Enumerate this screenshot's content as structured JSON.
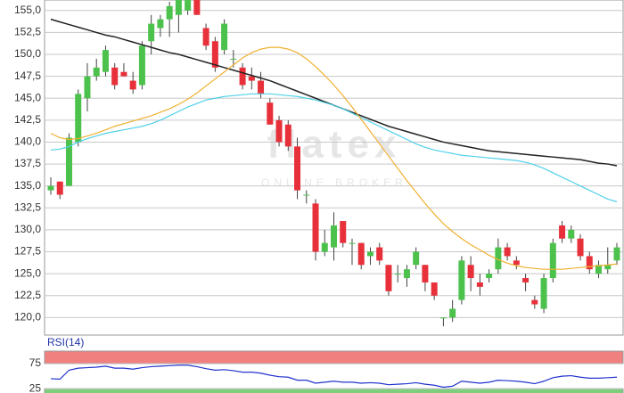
{
  "chart_data": [
    {
      "type": "candlestick",
      "annotations": [
        "flatex",
        "ONLINE BROKER"
      ],
      "up_color": "#4cc24c",
      "down_color": "#e8303a",
      "wick_color": "#444444",
      "open": [
        134.5,
        135.5,
        135,
        140,
        145,
        147.5,
        148,
        148.5,
        148,
        147,
        146.5,
        151.5,
        153,
        154,
        154.5,
        155,
        157,
        153,
        151.5,
        150.5,
        149.5,
        148.5,
        147.5,
        147,
        144.5,
        142.5,
        142,
        139.5,
        134,
        133,
        127.5,
        128,
        131,
        128.5,
        128.5,
        127,
        128,
        126,
        125,
        124.5,
        126,
        126,
        124,
        120,
        120,
        122,
        126,
        124,
        124.5,
        125.5,
        128,
        126.5,
        124.5,
        122,
        121,
        124.5,
        130.5,
        129,
        129,
        127,
        125,
        125.5,
        126.5
      ],
      "high": [
        136,
        135.5,
        141,
        146,
        149,
        149.5,
        151,
        149,
        149,
        148,
        151.5,
        154.5,
        154.5,
        156,
        157.5,
        157.5,
        157.5,
        153.5,
        152,
        154,
        150.5,
        149,
        148.5,
        148,
        145,
        143,
        142.5,
        140.5,
        134.5,
        133.5,
        130,
        132,
        131,
        129,
        128.5,
        128,
        128.5,
        126,
        126,
        126,
        128,
        126,
        124,
        120,
        122,
        127,
        127,
        125,
        125.5,
        129,
        128.5,
        127,
        125,
        122.5,
        125,
        129,
        131,
        130.5,
        129.5,
        127.5,
        126.5,
        128,
        128.5
      ],
      "low": [
        134,
        133.5,
        135,
        139.5,
        143.5,
        147,
        147.5,
        146,
        147.5,
        145.5,
        146,
        150,
        152,
        152,
        152.5,
        154.5,
        154.5,
        150.5,
        148,
        150,
        148.5,
        146,
        146,
        145,
        142,
        139.5,
        139,
        133.5,
        133,
        126.5,
        127,
        126.5,
        128,
        126,
        125.5,
        126,
        126,
        122.5,
        124,
        123.5,
        125.5,
        123,
        122,
        119,
        119.5,
        121.5,
        123,
        122.5,
        124,
        125,
        126.5,
        125.5,
        123,
        121,
        120.5,
        124,
        128.5,
        128.5,
        126.5,
        125,
        124.5,
        125,
        126
      ],
      "close": [
        135,
        134,
        140.5,
        145.5,
        147.5,
        148.5,
        150.5,
        146.5,
        147.5,
        146,
        151,
        153.5,
        154,
        155.5,
        157,
        157,
        154.5,
        151,
        148.5,
        153.5,
        149.5,
        146.5,
        147,
        145.5,
        142,
        140,
        139.5,
        134.5,
        134,
        127.5,
        128.5,
        130.5,
        128.5,
        128.5,
        126,
        127.5,
        126.5,
        123,
        125,
        125.5,
        127.5,
        124,
        122.5,
        120,
        121,
        126.5,
        124.5,
        123.5,
        125,
        128,
        127,
        126,
        124,
        121.5,
        124.5,
        128.5,
        129,
        130,
        127,
        125.5,
        126,
        126,
        128
      ],
      "series": [
        {
          "color": "#222222",
          "values": [
            154.0,
            153.7,
            153.4,
            153.1,
            152.8,
            152.5,
            152.2,
            152.0,
            151.7,
            151.4,
            151.1,
            150.8,
            150.5,
            150.2,
            150.0,
            149.7,
            149.4,
            149.1,
            148.8,
            148.5,
            148.2,
            147.9,
            147.6,
            147.3,
            147.0,
            146.6,
            146.2,
            145.8,
            145.4,
            145.0,
            144.6,
            144.2,
            143.8,
            143.4,
            143.0,
            142.6,
            142.2,
            141.8,
            141.5,
            141.2,
            140.9,
            140.6,
            140.3,
            140.0,
            139.8,
            139.6,
            139.4,
            139.2,
            139.0,
            138.9,
            138.8,
            138.7,
            138.6,
            138.5,
            138.4,
            138.3,
            138.2,
            138.1,
            138.0,
            137.8,
            137.6,
            137.5,
            137.3
          ]
        },
        {
          "color": "#4fd0e8",
          "values": [
            139.1,
            139.2,
            139.5,
            140.0,
            140.4,
            140.7,
            141.0,
            141.2,
            141.4,
            141.6,
            141.8,
            142.1,
            142.5,
            143.0,
            143.5,
            144.0,
            144.4,
            144.8,
            145.0,
            145.2,
            145.3,
            145.4,
            145.5,
            145.5,
            145.5,
            145.4,
            145.3,
            145.2,
            145.0,
            144.8,
            144.5,
            144.2,
            143.8,
            143.3,
            142.8,
            142.3,
            141.8,
            141.3,
            140.8,
            140.3,
            139.8,
            139.4,
            139.1,
            138.9,
            138.7,
            138.5,
            138.4,
            138.3,
            138.2,
            138.1,
            138.0,
            137.9,
            137.7,
            137.4,
            137.0,
            136.5,
            136.0,
            135.5,
            135.0,
            134.5,
            134.0,
            133.5,
            133.2
          ]
        },
        {
          "color": "#f0b030",
          "values": [
            141.0,
            140.5,
            140.3,
            140.4,
            140.7,
            141.0,
            141.4,
            141.8,
            142.1,
            142.4,
            142.7,
            143.0,
            143.4,
            143.8,
            144.3,
            144.9,
            145.6,
            146.4,
            147.2,
            148.0,
            148.8,
            149.6,
            150.2,
            150.6,
            150.8,
            150.8,
            150.6,
            150.2,
            149.5,
            148.6,
            147.6,
            146.5,
            145.3,
            144.0,
            142.6,
            141.2,
            139.8,
            138.4,
            137.0,
            135.6,
            134.3,
            133.0,
            131.8,
            130.7,
            129.8,
            129.0,
            128.3,
            127.7,
            127.1,
            126.6,
            126.2,
            125.9,
            125.7,
            125.6,
            125.5,
            125.5,
            125.5,
            125.6,
            125.7,
            125.8,
            125.9,
            126.0,
            126.1
          ]
        }
      ],
      "ylim": [
        118,
        156.2
      ],
      "yticks": [
        {
          "value": 120,
          "label": "120,0"
        },
        {
          "value": 122.5,
          "label": "122,5"
        },
        {
          "value": 125,
          "label": "125,0"
        },
        {
          "value": 127.5,
          "label": "127,5"
        },
        {
          "value": 130,
          "label": "130,0"
        },
        {
          "value": 132.5,
          "label": "132,5"
        },
        {
          "value": 135,
          "label": "135,0"
        },
        {
          "value": 137.5,
          "label": "137,5"
        },
        {
          "value": 140,
          "label": "140,0"
        },
        {
          "value": 142.5,
          "label": "142,5"
        },
        {
          "value": 145,
          "label": "145,0"
        },
        {
          "value": 147.5,
          "label": "147,5"
        },
        {
          "value": 150,
          "label": "150,0"
        },
        {
          "value": 152.5,
          "label": "152,5"
        },
        {
          "value": 155,
          "label": "155,0"
        }
      ],
      "grid": true
    },
    {
      "type": "line",
      "title": "RSI(14)",
      "overbought_color": "#f08080",
      "oversold_color": "#7cd07c",
      "series": [
        {
          "color": "#2233cc",
          "values": [
            45,
            44,
            62,
            66,
            67,
            68,
            70,
            66,
            66,
            64,
            67,
            69,
            70,
            71,
            72,
            72,
            69,
            65,
            62,
            63,
            61,
            58,
            58,
            56,
            52,
            49,
            48,
            42,
            42,
            36,
            38,
            40,
            38,
            38,
            36,
            37,
            36,
            33,
            34,
            35,
            37,
            34,
            32,
            28,
            30,
            40,
            38,
            36,
            38,
            42,
            41,
            40,
            38,
            35,
            40,
            47,
            50,
            51,
            48,
            46,
            46,
            47,
            48
          ]
        }
      ],
      "ylim": [
        20,
        100
      ],
      "yticks": [
        25,
        75
      ],
      "grid": true
    }
  ]
}
